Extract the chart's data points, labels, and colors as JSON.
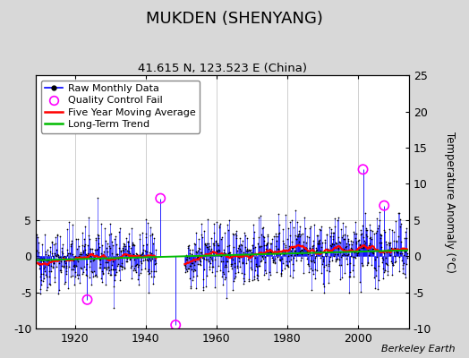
{
  "title": "MUKDEN (SHENYANG)",
  "subtitle": "41.615 N, 123.523 E (China)",
  "attribution": "Berkeley Earth",
  "year_start": 1909,
  "year_end": 2014,
  "ylim": [
    -10,
    25
  ],
  "yticks_right": [
    -10,
    -5,
    0,
    5,
    10,
    15,
    20,
    25
  ],
  "yticks_left": [
    -10,
    -5,
    0,
    5
  ],
  "xlabel_ticks": [
    1920,
    1940,
    1960,
    1980,
    2000
  ],
  "gap_start": 1943,
  "gap_end": 1951,
  "qc_fail_points": [
    {
      "year": 1923.5,
      "val": -6.0
    },
    {
      "year": 1944.2,
      "val": 8.0
    },
    {
      "year": 1948.5,
      "val": -9.5
    },
    {
      "year": 2001.5,
      "val": 12.0
    },
    {
      "year": 2007.5,
      "val": 7.0
    }
  ],
  "raw_color": "#0000ff",
  "raw_dot_color": "#000000",
  "qc_color": "#ff00ff",
  "moving_avg_color": "#ff0000",
  "trend_color": "#00bb00",
  "background_color": "#d8d8d8",
  "plot_bg_color": "#ffffff",
  "grid_color": "#c8c8c8",
  "seed": 42,
  "noise_amplitude": 2.8,
  "trend_slope": 0.013,
  "trend_intercept": -0.55,
  "moving_avg_window": 60,
  "title_fontsize": 13,
  "subtitle_fontsize": 9.5,
  "tick_labelsize": 9,
  "legend_fontsize": 8,
  "ylabel_fontsize": 8.5
}
